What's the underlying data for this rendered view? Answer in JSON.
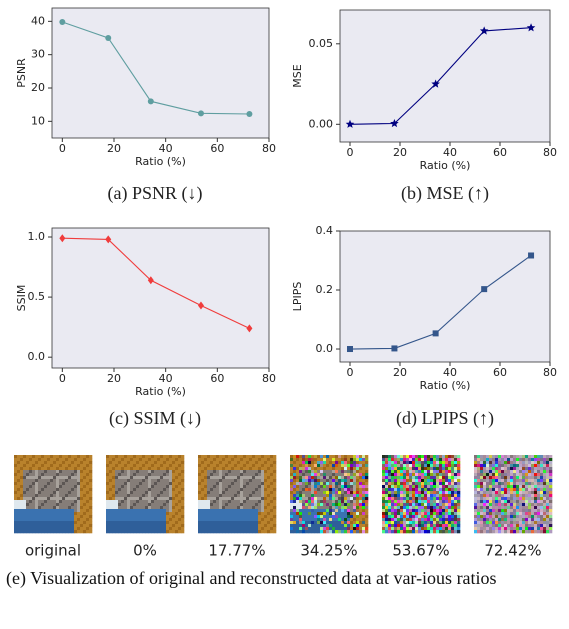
{
  "chart_data": [
    {
      "type": "line",
      "caption": "(a) PSNR (↓)",
      "xlabel": "Ratio (%)",
      "ylabel": "PSNR",
      "x": [
        0,
        17.77,
        34.25,
        53.67,
        72.42
      ],
      "series": [
        {
          "name": "PSNR",
          "color": "#5f9ea0",
          "marker": "circle",
          "values": [
            39.8,
            35.0,
            16.0,
            12.4,
            12.2
          ]
        }
      ],
      "xlim": [
        -4,
        80
      ],
      "xticks": [
        0,
        20,
        40,
        60,
        80
      ],
      "ylim": [
        5,
        44
      ],
      "yticks": [
        10,
        20,
        30,
        40
      ]
    },
    {
      "type": "line",
      "caption": "(b) MSE (↑)",
      "xlabel": "Ratio (%)",
      "ylabel": "MSE",
      "x": [
        0,
        17.77,
        34.25,
        53.67,
        72.42
      ],
      "series": [
        {
          "name": "MSE",
          "color": "#000080",
          "marker": "star",
          "values": [
            0.0,
            0.0005,
            0.025,
            0.058,
            0.06
          ]
        }
      ],
      "xlim": [
        -4,
        80
      ],
      "xticks": [
        0,
        20,
        40,
        60,
        80
      ],
      "ylim": [
        -0.011,
        0.071
      ],
      "yticks": [
        {
          "value": 0,
          "label": "0.00"
        },
        {
          "value": 0.05,
          "label": "0.05"
        }
      ]
    },
    {
      "type": "line",
      "caption": "(c) SSIM (↓)",
      "xlabel": "Ratio (%)",
      "ylabel": "SSIM",
      "x": [
        0,
        17.77,
        34.25,
        53.67,
        72.42
      ],
      "series": [
        {
          "name": "SSIM",
          "color": "#f03c3c",
          "marker": "diamond",
          "values": [
            0.99,
            0.98,
            0.64,
            0.43,
            0.24
          ]
        }
      ],
      "xlim": [
        -4,
        80
      ],
      "xticks": [
        0,
        20,
        40,
        60,
        80
      ],
      "ylim": [
        -0.09,
        1.075
      ],
      "yticks": [
        {
          "value": 0,
          "label": "0.0"
        },
        {
          "value": 0.5,
          "label": "0.5"
        },
        {
          "value": 1,
          "label": "1.0"
        }
      ]
    },
    {
      "type": "line",
      "caption": "(d) LPIPS (↑)",
      "xlabel": "Ratio (%)",
      "ylabel": "LPIPS",
      "x": [
        0,
        17.77,
        34.25,
        53.67,
        72.42
      ],
      "series": [
        {
          "name": "LPIPS",
          "color": "#34568b",
          "marker": "square",
          "values": [
            0.0,
            0.002,
            0.053,
            0.203,
            0.317
          ]
        }
      ],
      "xlim": [
        -4,
        80
      ],
      "xticks": [
        0,
        20,
        40,
        60,
        80
      ],
      "ylim": [
        -0.044,
        0.4
      ],
      "yticks": [
        {
          "value": 0,
          "label": "0.0"
        },
        {
          "value": 0.2,
          "label": "0.2"
        },
        {
          "value": 0.4,
          "label": "0.4"
        }
      ]
    }
  ],
  "image_labels": [
    "original",
    "0%",
    "17.77%",
    "34.25%",
    "53.67%",
    "72.42%"
  ],
  "figure_caption": "(e) Visualization of original and reconstructed data at var-ious ratios"
}
